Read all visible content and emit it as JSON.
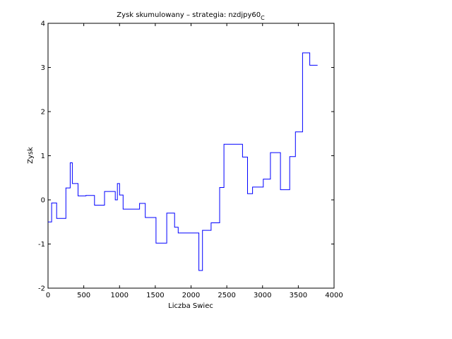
{
  "chart_data": {
    "type": "line",
    "step": true,
    "title": "Zysk skumulowany – strategia: nzdjpy60",
    "title_subscript": "C",
    "xlabel": "Liczba Swiec",
    "ylabel": "Zysk",
    "xlim": [
      0,
      4000
    ],
    "ylim": [
      -2,
      4
    ],
    "xticks": [
      0,
      500,
      1000,
      1500,
      2000,
      2500,
      3000,
      3500,
      4000
    ],
    "yticks": [
      -2,
      -1,
      0,
      1,
      2,
      3,
      4
    ],
    "grid": false,
    "line_color": "#0000ff",
    "series": [
      {
        "x": [
          0,
          50,
          120,
          250,
          310,
          340,
          420,
          530,
          650,
          790,
          940,
          970,
          1000,
          1050,
          1280,
          1360,
          1510,
          1660,
          1770,
          1820,
          2110,
          2160,
          2280,
          2400,
          2460,
          2720,
          2790,
          2860,
          3010,
          3110,
          3250,
          3380,
          3460,
          3560,
          3660,
          3720,
          3770
        ],
        "y": [
          -0.5,
          -0.07,
          -0.42,
          0.27,
          0.84,
          0.37,
          0.09,
          0.1,
          -0.12,
          0.19,
          0.0,
          0.37,
          0.11,
          -0.21,
          -0.08,
          -0.4,
          -0.98,
          -0.3,
          -0.62,
          -0.75,
          -1.6,
          -0.69,
          -0.52,
          0.28,
          1.26,
          0.97,
          0.14,
          0.29,
          0.47,
          1.07,
          0.23,
          0.98,
          1.54,
          3.33,
          3.05,
          3.05,
          3.05
        ]
      }
    ]
  }
}
